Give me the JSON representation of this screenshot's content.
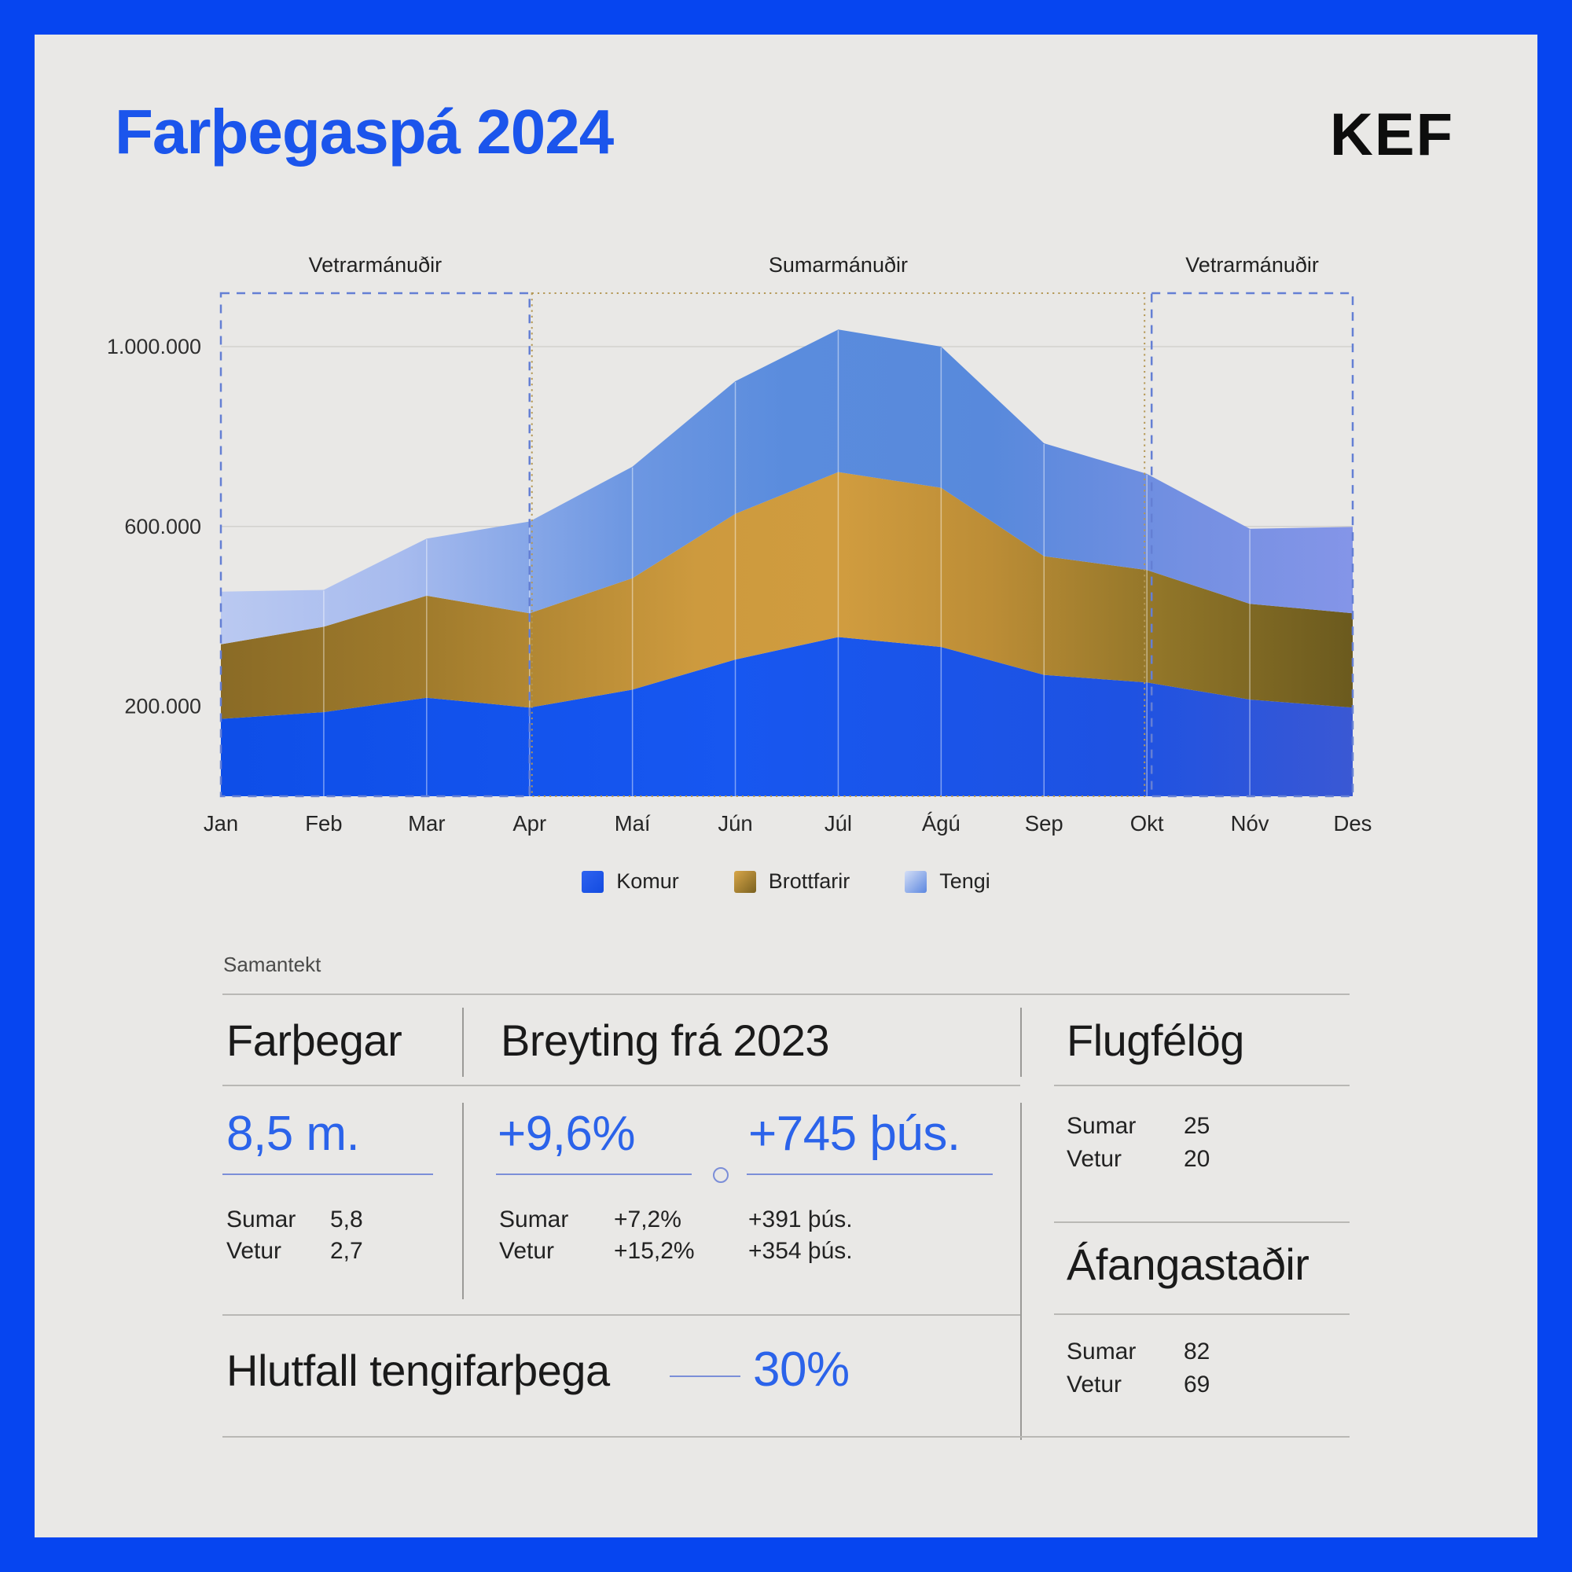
{
  "frame": {
    "border_color": "#0645f0",
    "background": "#e9e8e6",
    "accent": "#2b63ea",
    "underline_color": "#7b8ed8"
  },
  "header": {
    "title": "Farþegaspá 2024",
    "logo": "KEF"
  },
  "chart_data": {
    "type": "area",
    "stacked": true,
    "categories": [
      "Jan",
      "Feb",
      "Mar",
      "Apr",
      "Maí",
      "Jún",
      "Júl",
      "Ágú",
      "Sep",
      "Okt",
      "Nóv",
      "Des"
    ],
    "series": [
      {
        "name": "Komur",
        "values": [
          172000,
          187000,
          219000,
          197000,
          237000,
          304000,
          354000,
          332000,
          270000,
          253000,
          215000,
          197000
        ],
        "gradient": [
          [
            0,
            "#0e4ee8"
          ],
          [
            0.45,
            "#1757f0"
          ],
          [
            0.8,
            "#1e52e2"
          ],
          [
            1,
            "#3a58d4"
          ]
        ]
      },
      {
        "name": "Brottfarir",
        "values": [
          166000,
          190000,
          227000,
          210000,
          248000,
          324000,
          367000,
          354000,
          264000,
          250000,
          213000,
          210000
        ],
        "gradient": [
          [
            0,
            "#8a6b26"
          ],
          [
            0.18,
            "#a07b2c"
          ],
          [
            0.42,
            "#cd9a3e"
          ],
          [
            0.55,
            "#d09c3f"
          ],
          [
            0.68,
            "#bc8d36"
          ],
          [
            0.84,
            "#8f7428"
          ],
          [
            1,
            "#6b5a1e"
          ]
        ]
      },
      {
        "name": "Tengi",
        "values": [
          117000,
          82000,
          127000,
          204000,
          248000,
          295000,
          317000,
          314000,
          251000,
          214000,
          167000,
          192000
        ],
        "gradient": [
          [
            0,
            "#bac9f1"
          ],
          [
            0.16,
            "#a7bbee"
          ],
          [
            0.36,
            "#6d97e2"
          ],
          [
            0.5,
            "#5a8cdd"
          ],
          [
            0.68,
            "#5889dc"
          ],
          [
            0.86,
            "#7590e2"
          ],
          [
            1,
            "#8495e8"
          ]
        ]
      }
    ],
    "y_ticks": [
      1000000,
      600000,
      200000
    ],
    "y_tick_labels": [
      "1.000.000",
      "600.000",
      "200.000"
    ],
    "ylim": [
      0,
      1120000
    ],
    "grid": "horizontal",
    "legend_position": "bottom",
    "regions": [
      {
        "label": "Vetrarmánuðir",
        "from": 0,
        "to": 3,
        "style": "dashed-blue",
        "pad_left": 0,
        "pad_right": 0
      },
      {
        "label": "Sumarmánuðir",
        "from": 3,
        "to": 9,
        "style": "dotted-tan",
        "pad_left": 3,
        "pad_right": -3
      },
      {
        "label": "Vetrarmánuðir",
        "from": 9,
        "to": 11,
        "style": "dashed-blue",
        "pad_left": 6,
        "pad_right": 0
      }
    ]
  },
  "legend": [
    {
      "label": "Komur",
      "swatch": [
        "#2e63f0",
        "#134be0"
      ]
    },
    {
      "label": "Brottfarir",
      "swatch": [
        "#d8a648",
        "#7a6120"
      ]
    },
    {
      "label": "Tengi",
      "swatch": [
        "#d4def6",
        "#5c87e0"
      ]
    }
  ],
  "summary": {
    "section_label": "Samantekt",
    "farthegar": {
      "heading": "Farþegar",
      "value": "8,5 m.",
      "rows": [
        {
          "label": "Sumar",
          "value": "5,8"
        },
        {
          "label": "Vetur",
          "value": "2,7"
        }
      ]
    },
    "breyting": {
      "heading": "Breyting frá 2023",
      "value_pct": "+9,6%",
      "value_abs": "+745 þús.",
      "rows": [
        {
          "label": "Sumar",
          "pct": "+7,2%",
          "abs": "+391 þús."
        },
        {
          "label": "Vetur",
          "pct": "+15,2%",
          "abs": "+354 þús."
        }
      ]
    },
    "flugfelog": {
      "heading": "Flugfélög",
      "rows": [
        {
          "label": "Sumar",
          "value": "25"
        },
        {
          "label": "Vetur",
          "value": "20"
        }
      ]
    },
    "afangastadir": {
      "heading": "Áfangastaðir",
      "rows": [
        {
          "label": "Sumar",
          "value": "82"
        },
        {
          "label": "Vetur",
          "value": "69"
        }
      ]
    },
    "hlutfall": {
      "label": "Hlutfall tengifarþega",
      "value": "30%"
    }
  }
}
